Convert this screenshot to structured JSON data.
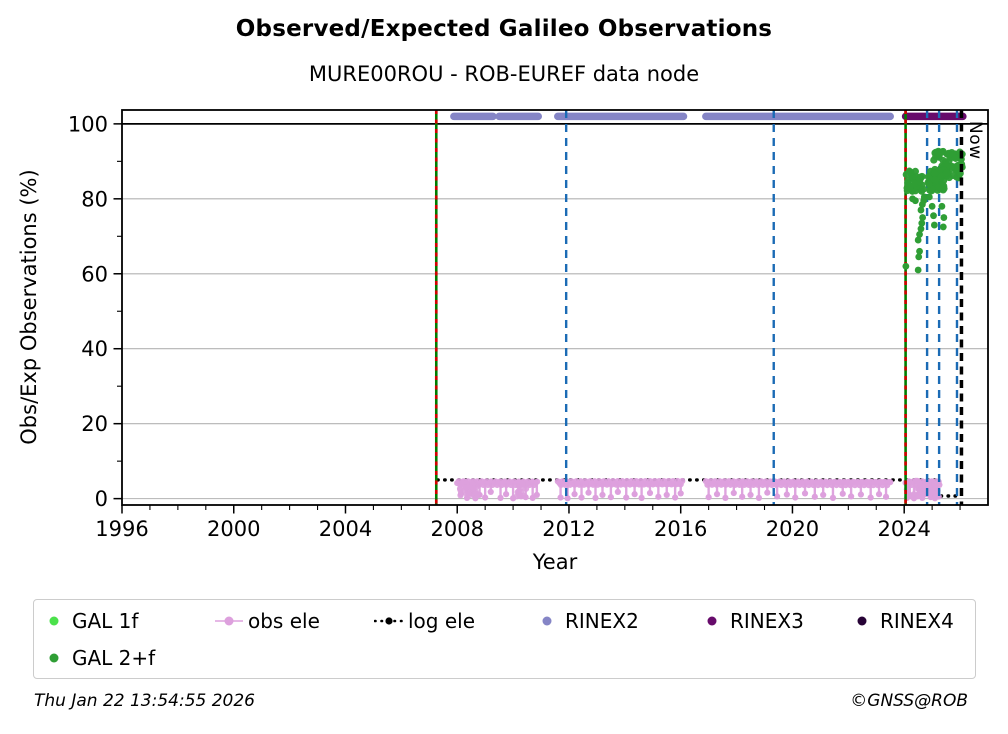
{
  "header": {
    "title": "Observed/Expected Galileo Observations",
    "subtitle": "MURE00ROU - ROB-EUREF data node"
  },
  "axes": {
    "xlabel": "Year",
    "ylabel": "Obs/Exp Observations (%)"
  },
  "annotations": {
    "now_label": "Now"
  },
  "footer": {
    "timestamp": "Thu Jan 22 13:54:55 2026",
    "credit": "©GNSS@ROB"
  },
  "colors": {
    "gal1f": "#4be14b",
    "gal2f": "#2f9e35",
    "obs_ele": "#dda0dd",
    "log_ele": "#000000",
    "rinex2": "#8585c6",
    "rinex3": "#670b6b",
    "rinex4": "#270336",
    "vline_green": "#007d00",
    "vline_red": "#d40000",
    "vline_blue": "#1b6bb5",
    "now_line": "#000000",
    "grid": "#b2b2b2",
    "frame": "#000000"
  },
  "legend": {
    "items": [
      {
        "label": "GAL 1f",
        "marker": "dot",
        "color_key": "gal1f",
        "row": 1,
        "col": 0
      },
      {
        "label": "obs ele",
        "marker": "line-dot",
        "color_key": "obs_ele",
        "row": 1,
        "col": 1
      },
      {
        "label": "log ele",
        "marker": "dotted-line",
        "color_key": "log_ele",
        "row": 1,
        "col": 2
      },
      {
        "label": "RINEX2",
        "marker": "dot",
        "color_key": "rinex2",
        "row": 1,
        "col": 3
      },
      {
        "label": "RINEX3",
        "marker": "dot",
        "color_key": "rinex3",
        "row": 1,
        "col": 4
      },
      {
        "label": "RINEX4",
        "marker": "dot",
        "color_key": "rinex4",
        "row": 1,
        "col": 5
      },
      {
        "label": "GAL 2+f",
        "marker": "dot",
        "color_key": "gal2f",
        "row": 2,
        "col": 0
      }
    ]
  },
  "chart_data": {
    "type": "scatter",
    "title": "Observed/Expected Galileo Observations",
    "subtitle": "MURE00ROU - ROB-EUREF data node",
    "xlabel": "Year",
    "ylabel": "Obs/Exp Observations (%)",
    "xlim": [
      1996,
      2027
    ],
    "ylim": [
      -1.7,
      103.7
    ],
    "x_major_ticks": [
      1996,
      2000,
      2004,
      2008,
      2012,
      2016,
      2020,
      2024
    ],
    "x_minor_step": 1,
    "y_major_ticks": [
      0,
      20,
      40,
      60,
      80,
      100
    ],
    "y_minor_ticks": [
      10,
      30,
      50,
      70,
      90
    ],
    "grid": "horizontal-major",
    "legend_position": "below",
    "reference_line_y": 100,
    "rinex_bar_value": 102,
    "rinex2_segments_years": [
      [
        2007.88,
        2009.28
      ],
      [
        2009.5,
        2010.9
      ],
      [
        2011.6,
        2016.1
      ],
      [
        2016.9,
        2023.5
      ]
    ],
    "rinex3_segments_years": [
      [
        2024.05,
        2026.1
      ]
    ],
    "vlines": {
      "green_solid_red_dashed": [
        2007.25,
        2024.05
      ],
      "blue_dashed": [
        2011.9,
        2019.33,
        2024.82,
        2025.25,
        2025.89
      ],
      "now_black_dashed": 2026.05
    },
    "log_ele_steps": [
      {
        "x": [
          2007.3,
          2025.28
        ],
        "y": 5.0
      },
      {
        "x": [
          2025.32,
          2026.05
        ],
        "y": 0.7
      }
    ],
    "obs_ele": {
      "band_level": 4.5,
      "band_segments": [
        [
          2008.0,
          2010.9
        ],
        [
          2011.6,
          2016.1
        ],
        [
          2016.9,
          2023.55
        ],
        [
          2024.05,
          2025.3
        ]
      ],
      "spikes": [
        [
          2008.35,
          0.2
        ],
        [
          2008.5,
          1.5
        ],
        [
          2008.65,
          0.1
        ],
        [
          2008.8,
          1.0
        ],
        [
          2009.0,
          0.3
        ],
        [
          2009.2,
          1.8
        ],
        [
          2009.55,
          0.2
        ],
        [
          2009.75,
          1.2
        ],
        [
          2010.0,
          0.1
        ],
        [
          2010.2,
          1.5
        ],
        [
          2010.45,
          0.4
        ],
        [
          2010.7,
          0.2
        ],
        [
          2010.85,
          1.0
        ],
        [
          2011.7,
          0.3
        ],
        [
          2011.95,
          0.1
        ],
        [
          2012.2,
          1.2
        ],
        [
          2012.45,
          0.3
        ],
        [
          2012.7,
          1.6
        ],
        [
          2012.95,
          0.2
        ],
        [
          2013.2,
          1.0
        ],
        [
          2013.5,
          0.4
        ],
        [
          2013.75,
          1.8
        ],
        [
          2014.05,
          0.3
        ],
        [
          2014.35,
          1.2
        ],
        [
          2014.6,
          0.2
        ],
        [
          2014.9,
          1.5
        ],
        [
          2015.2,
          0.5
        ],
        [
          2015.5,
          1.0
        ],
        [
          2015.8,
          0.3
        ],
        [
          2016.0,
          1.4
        ],
        [
          2017.0,
          0.4
        ],
        [
          2017.3,
          1.2
        ],
        [
          2017.6,
          0.2
        ],
        [
          2017.9,
          1.5
        ],
        [
          2018.2,
          0.5
        ],
        [
          2018.5,
          1.0
        ],
        [
          2018.8,
          0.2
        ],
        [
          2019.1,
          1.6
        ],
        [
          2019.45,
          0.6
        ],
        [
          2019.8,
          1.1
        ],
        [
          2020.1,
          0.3
        ],
        [
          2020.45,
          1.4
        ],
        [
          2020.8,
          0.5
        ],
        [
          2021.1,
          1.0
        ],
        [
          2021.45,
          0.2
        ],
        [
          2021.8,
          1.3
        ],
        [
          2022.1,
          0.6
        ],
        [
          2022.45,
          1.1
        ],
        [
          2022.8,
          0.3
        ],
        [
          2023.1,
          1.2
        ],
        [
          2023.35,
          0.5
        ],
        [
          2024.1,
          0.2
        ],
        [
          2024.2,
          1.0
        ],
        [
          2024.35,
          0.1
        ],
        [
          2024.5,
          0.8
        ],
        [
          2024.65,
          0.2
        ],
        [
          2024.8,
          1.2
        ],
        [
          2024.95,
          0.4
        ],
        [
          2025.1,
          0.1
        ],
        [
          2025.2,
          0.6
        ]
      ],
      "dense_clusters": [
        {
          "x": [
            2008.1,
            2008.75
          ],
          "y": [
            0.2,
            4.5
          ],
          "n": 30
        },
        {
          "x": [
            2010.1,
            2010.55
          ],
          "y": [
            0.5,
            4.0
          ],
          "n": 12
        },
        {
          "x": [
            2024.05,
            2025.3
          ],
          "y": [
            0.4,
            4.8
          ],
          "n": 60
        }
      ]
    },
    "gal_2f": {
      "clusters": [
        {
          "x": [
            2024.05,
            2025.45
          ],
          "y": [
            82.0,
            87.5
          ],
          "n": 85
        },
        {
          "x": [
            2025.05,
            2026.08
          ],
          "y": [
            85.5,
            93.0
          ],
          "n": 70
        }
      ],
      "points": [
        [
          2024.06,
          62.0
        ],
        [
          2024.3,
          80.0
        ],
        [
          2024.4,
          79.5
        ],
        [
          2024.5,
          61.0
        ],
        [
          2024.52,
          64.5
        ],
        [
          2024.55,
          66.0
        ],
        [
          2024.5,
          69.0
        ],
        [
          2024.55,
          70.5
        ],
        [
          2024.6,
          72.0
        ],
        [
          2024.63,
          73.5
        ],
        [
          2024.66,
          75.0
        ],
        [
          2024.6,
          77.0
        ],
        [
          2024.65,
          78.5
        ],
        [
          2024.7,
          79.5
        ],
        [
          2024.72,
          80.5
        ],
        [
          2024.9,
          80.5
        ],
        [
          2025.0,
          78.0
        ],
        [
          2025.05,
          75.5
        ],
        [
          2025.08,
          73.0
        ],
        [
          2025.35,
          78.0
        ],
        [
          2025.4,
          72.5
        ],
        [
          2025.42,
          75.0
        ]
      ]
    },
    "gal_1f": {
      "points": []
    }
  }
}
